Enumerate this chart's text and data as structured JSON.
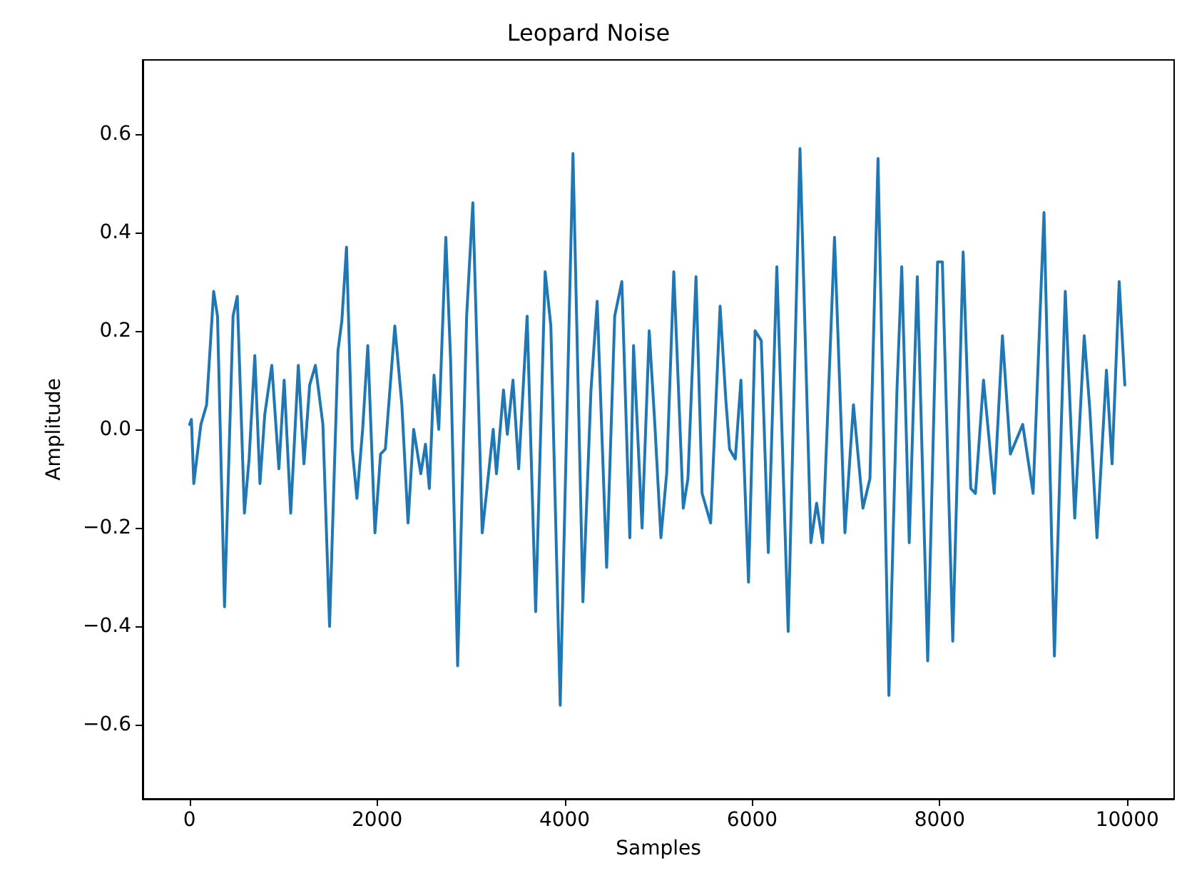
{
  "chart_data": {
    "type": "line",
    "title": "Leopard Noise",
    "xlabel": "Samples",
    "ylabel": "Amplitude",
    "x": [
      0,
      20,
      45,
      121,
      182,
      257,
      298,
      373,
      464,
      509,
      585,
      635,
      696,
      751,
      802,
      877,
      953,
      1009,
      1079,
      1160,
      1220,
      1281,
      1342,
      1422,
      1493,
      1583,
      1624,
      1674,
      1735,
      1785,
      1846,
      1901,
      1977,
      2037,
      2088,
      2189,
      2264,
      2330,
      2390,
      2466,
      2516,
      2557,
      2607,
      2658,
      2733,
      2784,
      2859,
      2955,
      3021,
      3121,
      3172,
      3238,
      3273,
      3348,
      3389,
      3449,
      3510,
      3600,
      3691,
      3792,
      3853,
      3953,
      4089,
      4195,
      4281,
      4347,
      4448,
      4534,
      4610,
      4695,
      4735,
      4826,
      4902,
      4962,
      5027,
      5088,
      5164,
      5265,
      5315,
      5401,
      5466,
      5557,
      5658,
      5719,
      5759,
      5820,
      5880,
      5961,
      6031,
      6097,
      6172,
      6263,
      6384,
      6510,
      6626,
      6687,
      6752,
      6878,
      6989,
      7080,
      7181,
      7256,
      7342,
      7458,
      7544,
      7595,
      7675,
      7761,
      7872,
      7977,
      8028,
      8139,
      8250,
      8331,
      8381,
      8467,
      8581,
      8669,
      8754,
      8820,
      8885,
      8996,
      9112,
      9223,
      9339,
      9440,
      9541,
      9601,
      9677,
      9778,
      9838,
      9914,
      9974
    ],
    "series": [
      {
        "color": "#1f77b4",
        "values": [
          0.01,
          0.02,
          -0.11,
          0.01,
          0.05,
          0.28,
          0.23,
          -0.36,
          0.23,
          0.27,
          -0.17,
          -0.06,
          0.15,
          -0.11,
          0.03,
          0.13,
          -0.08,
          0.1,
          -0.17,
          0.13,
          -0.07,
          0.09,
          0.13,
          0.01,
          -0.4,
          0.16,
          0.22,
          0.37,
          -0.04,
          -0.14,
          0.0,
          0.17,
          -0.21,
          -0.05,
          -0.04,
          0.21,
          0.05,
          -0.19,
          0.0,
          -0.09,
          -0.03,
          -0.12,
          0.11,
          0.0,
          0.39,
          0.14,
          -0.48,
          0.23,
          0.46,
          -0.21,
          -0.12,
          0.0,
          -0.09,
          0.08,
          -0.01,
          0.1,
          -0.08,
          0.23,
          -0.37,
          0.32,
          0.21,
          -0.56,
          0.56,
          -0.35,
          0.08,
          0.26,
          -0.28,
          0.23,
          0.3,
          -0.22,
          0.17,
          -0.2,
          0.2,
          0.01,
          -0.22,
          -0.09,
          0.32,
          -0.16,
          -0.1,
          0.31,
          -0.13,
          -0.19,
          0.25,
          0.06,
          -0.04,
          -0.06,
          0.1,
          -0.31,
          0.2,
          0.18,
          -0.25,
          0.33,
          -0.41,
          0.57,
          -0.23,
          -0.15,
          -0.23,
          0.39,
          -0.21,
          0.05,
          -0.16,
          -0.1,
          0.55,
          -0.54,
          0.08,
          0.33,
          -0.23,
          0.31,
          -0.47,
          0.34,
          0.34,
          -0.43,
          0.36,
          -0.12,
          -0.13,
          0.1,
          -0.13,
          0.19,
          -0.05,
          -0.02,
          0.01,
          -0.13,
          0.44,
          -0.46,
          0.28,
          -0.18,
          0.19,
          0.04,
          -0.22,
          0.12,
          -0.07,
          0.3,
          0.09
        ]
      }
    ],
    "xlim": [
      -500,
      10500
    ],
    "xticks": [
      0,
      2000,
      4000,
      6000,
      8000,
      10000
    ],
    "ylim": [
      -0.75,
      0.75
    ],
    "yticks": [
      {
        "value": -0.6,
        "label": "−0.6"
      },
      {
        "value": -0.4,
        "label": "−0.4"
      },
      {
        "value": -0.2,
        "label": "−0.2"
      },
      {
        "value": 0,
        "label": "0.0"
      },
      0.2,
      0.4,
      0.6
    ],
    "grid": false,
    "marker": "none",
    "line_style": "solid"
  }
}
